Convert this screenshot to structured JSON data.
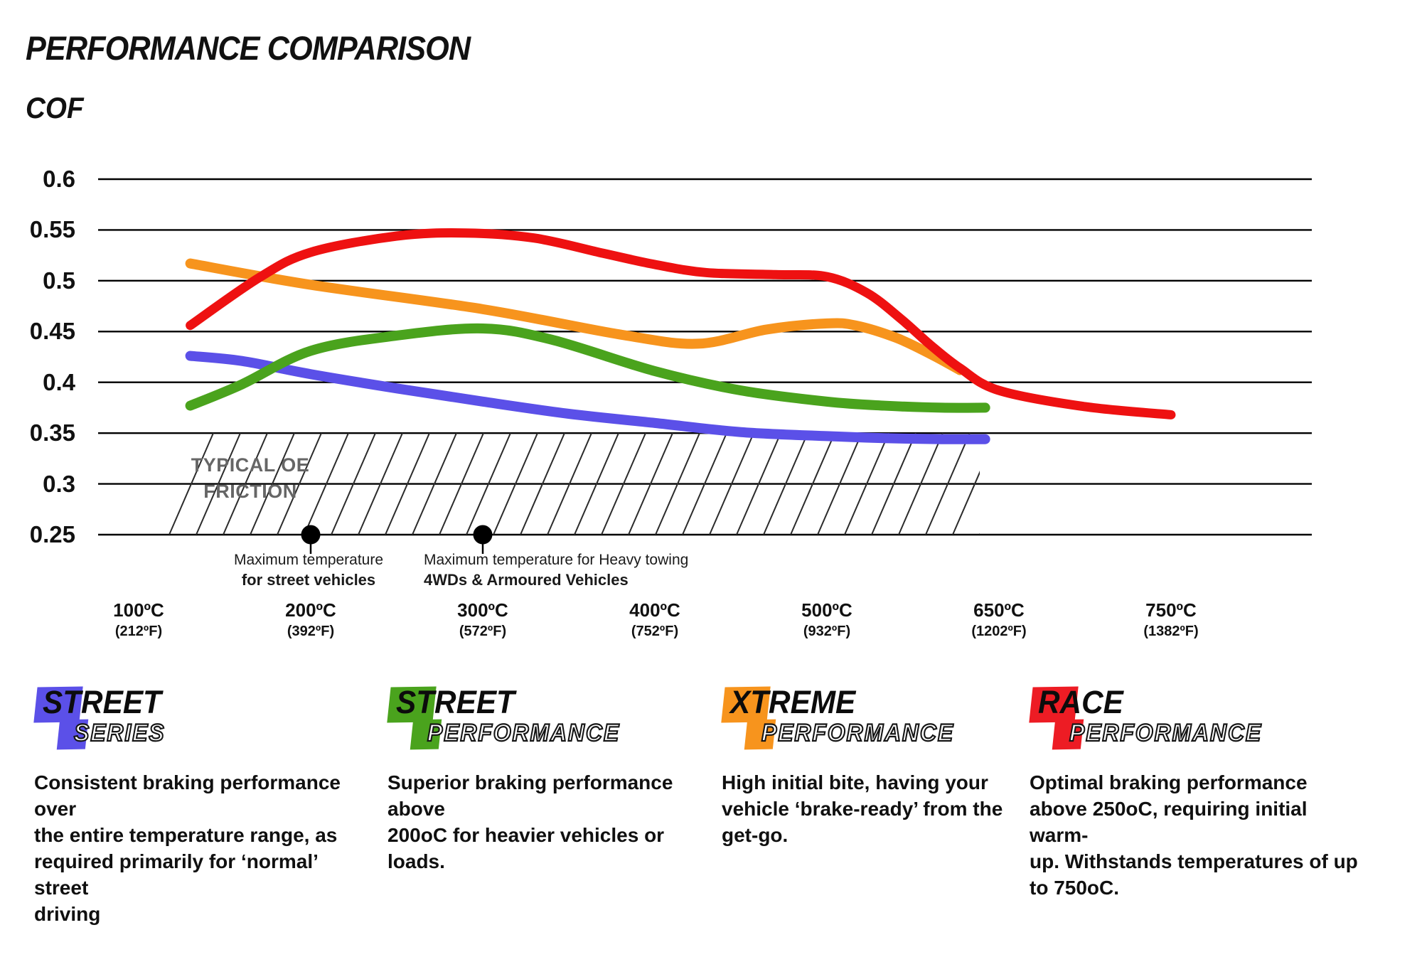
{
  "title": "PERFORMANCE COMPARISON",
  "y_axis_label": "COF",
  "chart_data": {
    "type": "line",
    "title": "PERFORMANCE COMPARISON",
    "ylabel": "COF",
    "ylim": [
      0.25,
      0.6
    ],
    "grid": "horizontal",
    "y_ticks": [
      "0.6",
      "0.55",
      "0.5",
      "0.45",
      "0.4",
      "0.35",
      "0.3",
      "0.25"
    ],
    "y_tick_values": [
      0.6,
      0.55,
      0.5,
      0.45,
      0.4,
      0.35,
      0.3,
      0.25
    ],
    "x_ticks": [
      {
        "t": 100,
        "label_c": "100ºC",
        "label_f": "(212ºF)"
      },
      {
        "t": 200,
        "label_c": "200ºC",
        "label_f": "(392ºF)"
      },
      {
        "t": 300,
        "label_c": "300ºC",
        "label_f": "(572ºF)"
      },
      {
        "t": 400,
        "label_c": "400ºC",
        "label_f": "(752ºF)"
      },
      {
        "t": 500,
        "label_c": "500ºC",
        "label_f": "(932ºF)"
      },
      {
        "t": 650,
        "label_c": "650ºC",
        "label_f": "(1202ºF)"
      },
      {
        "t": 750,
        "label_c": "750ºC",
        "label_f": "(1382ºF)"
      }
    ],
    "series": [
      {
        "name": "Street Series",
        "color": "#5b50e8",
        "width": 14,
        "points": [
          [
            130,
            0.426
          ],
          [
            160,
            0.421
          ],
          [
            200,
            0.408
          ],
          [
            250,
            0.394
          ],
          [
            300,
            0.381
          ],
          [
            350,
            0.369
          ],
          [
            400,
            0.36
          ],
          [
            450,
            0.351
          ],
          [
            500,
            0.347
          ],
          [
            550,
            0.345
          ],
          [
            600,
            0.344
          ],
          [
            638,
            0.344
          ]
        ]
      },
      {
        "name": "Street Performance",
        "color": "#4aa31d",
        "width": 14,
        "points": [
          [
            130,
            0.377
          ],
          [
            160,
            0.398
          ],
          [
            200,
            0.431
          ],
          [
            250,
            0.446
          ],
          [
            300,
            0.453
          ],
          [
            340,
            0.442
          ],
          [
            400,
            0.411
          ],
          [
            450,
            0.392
          ],
          [
            500,
            0.381
          ],
          [
            550,
            0.377
          ],
          [
            600,
            0.375
          ],
          [
            638,
            0.375
          ]
        ]
      },
      {
        "name": "Xtreme Performance",
        "color": "#f7941d",
        "width": 14,
        "points": [
          [
            130,
            0.517
          ],
          [
            200,
            0.496
          ],
          [
            300,
            0.472
          ],
          [
            380,
            0.447
          ],
          [
            425,
            0.438
          ],
          [
            465,
            0.452
          ],
          [
            500,
            0.458
          ],
          [
            525,
            0.456
          ],
          [
            560,
            0.444
          ],
          [
            590,
            0.428
          ],
          [
            616,
            0.412
          ]
        ]
      },
      {
        "name": "Race Performance",
        "color": "#ee1111",
        "width": 13,
        "points": [
          [
            130,
            0.456
          ],
          [
            170,
            0.503
          ],
          [
            200,
            0.528
          ],
          [
            250,
            0.544
          ],
          [
            290,
            0.547
          ],
          [
            330,
            0.542
          ],
          [
            370,
            0.527
          ],
          [
            400,
            0.516
          ],
          [
            430,
            0.508
          ],
          [
            470,
            0.506
          ],
          [
            500,
            0.504
          ],
          [
            535,
            0.488
          ],
          [
            565,
            0.462
          ],
          [
            590,
            0.437
          ],
          [
            616,
            0.414
          ],
          [
            650,
            0.392
          ],
          [
            700,
            0.376
          ],
          [
            750,
            0.368
          ]
        ]
      }
    ],
    "oe_band": {
      "cof_from": 0.25,
      "cof_to": 0.35,
      "line1": "TYPICAL OE",
      "line2": "FRICTION"
    },
    "max_temp_markers": [
      {
        "t": 200,
        "cof": 0.25
      },
      {
        "t": 300,
        "cof": 0.25
      }
    ]
  },
  "annotations": [
    {
      "line1": "Maximum temperature",
      "line2": "for street vehicles"
    },
    {
      "line1": "Maximum temperature for Heavy towing",
      "line2": "4WDs & Armoured Vehicles"
    }
  ],
  "legend": [
    {
      "word1": "STREET",
      "word2": "SERIES",
      "color": "#5b50e8",
      "description_lines": [
        "Consistent braking performance over",
        "the entire temperature range, as",
        "required primarily for ‘normal’ street",
        "driving"
      ]
    },
    {
      "word1": "STREET",
      "word2": "PERFORMANCE",
      "color": "#4aa31d",
      "description_lines": [
        "Superior braking performance above",
        "200oC for heavier vehicles or loads."
      ]
    },
    {
      "word1": "XTREME",
      "word2": "PERFORMANCE",
      "color": "#f7941d",
      "description_lines": [
        "High initial bite, having your",
        "vehicle ‘brake-ready’ from the",
        "get-go."
      ]
    },
    {
      "word1": "RACE",
      "word2": "PERFORMANCE",
      "color": "#ed1c24",
      "description_lines": [
        "Optimal braking performance",
        "above 250oC, requiring initial warm-",
        "up. Withstands temperatures of up",
        "to 750oC."
      ]
    }
  ]
}
